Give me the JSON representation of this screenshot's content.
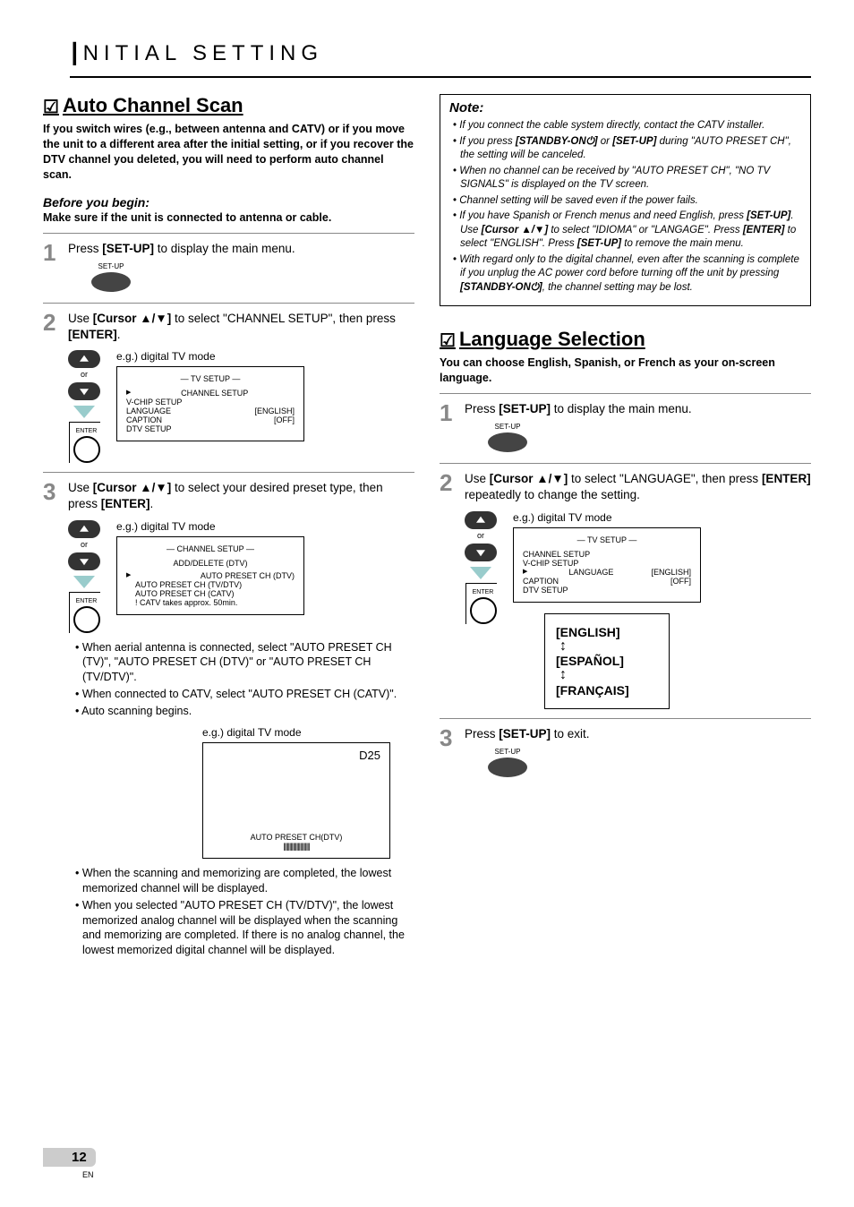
{
  "header": {
    "letter": "I",
    "rest": "NITIAL   SETTING"
  },
  "left": {
    "section_title": "Auto Channel Scan",
    "intro": "If you switch wires (e.g., between antenna and CATV) or if you move the unit to a different area after the initial setting, or if you recover the DTV channel you deleted, you will need to perform auto channel scan.",
    "before_label": "Before you begin:",
    "before_text": "Make sure if the unit is connected to antenna or cable.",
    "step1": {
      "text_pre": "Press ",
      "btn": "[SET-UP]",
      "text_post": " to display the main menu.",
      "remote_label": "SET-UP"
    },
    "step2": {
      "text_pre": "Use ",
      "cursor": "[Cursor ▲/▼]",
      "text_mid": " to select \"CHANNEL SETUP\", then press ",
      "enter": "[ENTER]",
      "text_post": ".",
      "eg": "e.g.) digital TV mode",
      "osd_title": "—  TV SETUP  —",
      "osd_items": [
        "CHANNEL SETUP",
        "V-CHIP  SETUP",
        "LANGUAGE",
        "CAPTION",
        "DTV SETUP"
      ],
      "osd_vals": [
        "",
        "",
        "[ENGLISH]",
        "[OFF]",
        ""
      ],
      "or": "or",
      "enter_label": "ENTER"
    },
    "step3": {
      "text_pre": "Use ",
      "cursor": "[Cursor ▲/▼]",
      "text_mid": " to select your desired preset type, then press ",
      "enter": "[ENTER]",
      "text_post": ".",
      "eg": "e.g.) digital TV mode",
      "osd_title": "—  CHANNEL SETUP  —",
      "osd_top": "ADD/DELETE (DTV)",
      "osd_items": [
        "AUTO PRESET CH (DTV)",
        "AUTO PRESET CH (TV/DTV)",
        "AUTO PRESET CH (CATV)",
        "! CATV takes approx. 50min."
      ],
      "bul1": "When aerial antenna is connected, select \"AUTO PRESET CH (TV)\", \"AUTO PRESET CH (DTV)\" or \"AUTO PRESET CH (TV/DTV)\".",
      "bul2": "When connected to CATV, select \"AUTO PRESET CH (CATV)\".",
      "bul3": "Auto scanning begins.",
      "eg2": "e.g.) digital TV mode",
      "scan_ch": "D25",
      "scan_label": "AUTO PRESET CH(DTV)",
      "scan_bar": "||||||||||||||||||||||",
      "bul4": "When the scanning and memorizing are completed, the lowest memorized channel will be displayed.",
      "bul5": "When you selected \"AUTO PRESET CH (TV/DTV)\", the lowest memorized analog channel will be displayed when the scanning and memorizing are completed. If there is no analog channel, the lowest memorized digital channel will be displayed."
    }
  },
  "right": {
    "note_title": "Note:",
    "notes": [
      "If you connect the cable system directly, contact the CATV installer.",
      "If you press <b>[STANDBY-ON⏻]</b> or <b>[SET-UP]</b> during \"AUTO PRESET CH\", the setting will be canceled.",
      "When no channel can be received by \"AUTO PRESET CH\", \"NO TV SIGNALS\" is displayed on the TV screen.",
      "Channel setting will be saved even if the power fails.",
      "If you have Spanish or French menus and need English, press <b>[SET-UP]</b>. Use <b>[Cursor ▲/▼]</b> to select \"IDIOMA\" or \"LANGAGE\". Press <b>[ENTER]</b> to select \"ENGLISH\". Press <b>[SET-UP]</b> to remove the main menu.",
      "With regard only to the digital channel, even after the scanning is complete if you unplug the AC power cord before turning off the unit by pressing <b>[STANDBY-ON⏻]</b>, the channel setting may be lost."
    ],
    "section_title": "Language Selection",
    "intro": "You can choose English, Spanish, or French as your on-screen language.",
    "step1": {
      "text_pre": "Press ",
      "btn": "[SET-UP]",
      "text_post": " to display the main menu.",
      "remote_label": "SET-UP"
    },
    "step2": {
      "text_pre": "Use ",
      "cursor": "[Cursor ▲/▼]",
      "text_mid": " to select \"LANGUAGE\", then press ",
      "enter": "[ENTER]",
      "text_post": " repeatedly to change the setting.",
      "eg": "e.g.) digital TV mode",
      "osd_title": "—  TV SETUP  —",
      "osd_items": [
        "CHANNEL SETUP",
        "V-CHIP  SETUP",
        "LANGUAGE",
        "CAPTION",
        "DTV SETUP"
      ],
      "osd_vals": [
        "",
        "",
        "[ENGLISH]",
        "[OFF]",
        ""
      ],
      "langs": [
        "[ENGLISH]",
        "[ESPAÑOL]",
        "[FRANÇAIS]"
      ]
    },
    "step3": {
      "text_pre": "Press ",
      "btn": "[SET-UP]",
      "text_post": " to exit.",
      "remote_label": "SET-UP"
    }
  },
  "page": {
    "num": "12",
    "en": "EN"
  }
}
